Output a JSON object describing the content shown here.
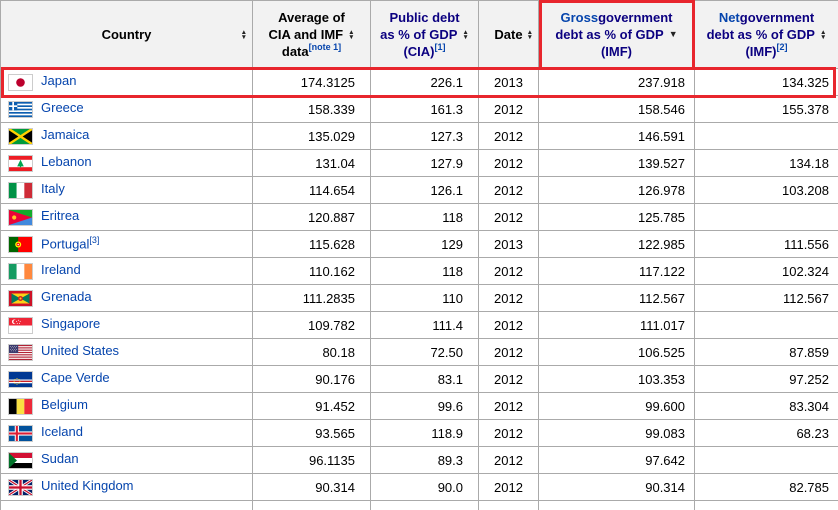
{
  "colors": {
    "link_blue": "#0645ad",
    "visited_link_navy": "#0b0080",
    "annotation_red": "#e8262d",
    "table_border_gray": "#aaaaaa",
    "header_background": "#f2f2f2"
  },
  "icons": {
    "sort_up_glyph": "▲",
    "sort_down_glyph": "▼"
  },
  "table": {
    "headers": [
      {
        "id": "country",
        "name": "column-header-country",
        "lines": [
          [
            {
              "t": "Country",
              "s": "b"
            }
          ]
        ],
        "sort": "both",
        "single": true
      },
      {
        "id": "average",
        "name": "column-header-average-cia-imf",
        "lines": [
          [
            {
              "t": "Average of",
              "s": "b"
            }
          ],
          [
            {
              "t": "CIA and IMF",
              "s": "b"
            }
          ],
          [
            {
              "t": "data",
              "s": "b"
            },
            {
              "t": "[note 1]",
              "s": "sup"
            }
          ]
        ],
        "sort": "both",
        "icon_line": 1,
        "single": false
      },
      {
        "id": "cia",
        "name": "column-header-public-debt-cia",
        "lines": [
          [
            {
              "t": "Public debt",
              "s": "v"
            }
          ],
          [
            {
              "t": "as % of GDP",
              "s": "v"
            }
          ],
          [
            {
              "t": "(CIA)",
              "s": "v"
            },
            {
              "t": "[1]",
              "s": "sup"
            }
          ]
        ],
        "sort": "both",
        "icon_line": 1,
        "single": false
      },
      {
        "id": "date",
        "name": "column-header-date",
        "lines": [
          [
            {
              "t": "Date",
              "s": "b"
            }
          ]
        ],
        "sort": "both",
        "single": true
      },
      {
        "id": "gross",
        "name": "column-header-gross-debt-imf",
        "lines": [
          [
            {
              "t": "Gross",
              "s": "l"
            },
            {
              "t": " government",
              "s": "v"
            }
          ],
          [
            {
              "t": "debt as % of GDP",
              "s": "v"
            }
          ],
          [
            {
              "t": "(IMF)",
              "s": "v"
            }
          ]
        ],
        "sort": "desc",
        "icon_line": 1,
        "single": false,
        "boxed": true
      },
      {
        "id": "net",
        "name": "column-header-net-debt-imf",
        "lines": [
          [
            {
              "t": "Net",
              "s": "l"
            },
            {
              "t": " government",
              "s": "v"
            }
          ],
          [
            {
              "t": "debt as % of GDP",
              "s": "v"
            }
          ],
          [
            {
              "t": "(IMF)",
              "s": "v"
            },
            {
              "t": "[2]",
              "s": "sup"
            }
          ]
        ],
        "sort": "both",
        "icon_line": 1,
        "single": false
      }
    ],
    "rows": [
      {
        "flag": "japan",
        "country": "Japan",
        "country_sup": "",
        "average": "174.3125",
        "cia": "226.1",
        "date": "2013",
        "gross": "237.918",
        "net": "134.325",
        "highlighted": true
      },
      {
        "flag": "greece",
        "country": "Greece",
        "country_sup": "",
        "average": "158.339",
        "cia": "161.3",
        "date": "2012",
        "gross": "158.546",
        "net": "155.378",
        "highlighted": false
      },
      {
        "flag": "jamaica",
        "country": "Jamaica",
        "country_sup": "",
        "average": "135.029",
        "cia": "127.3",
        "date": "2012",
        "gross": "146.591",
        "net": "",
        "highlighted": false
      },
      {
        "flag": "lebanon",
        "country": "Lebanon",
        "country_sup": "",
        "average": "131.04",
        "cia": "127.9",
        "date": "2012",
        "gross": "139.527",
        "net": "134.18",
        "highlighted": false
      },
      {
        "flag": "italy",
        "country": "Italy",
        "country_sup": "",
        "average": "114.654",
        "cia": "126.1",
        "date": "2012",
        "gross": "126.978",
        "net": "103.208",
        "highlighted": false
      },
      {
        "flag": "eritrea",
        "country": "Eritrea",
        "country_sup": "",
        "average": "120.887",
        "cia": "118",
        "date": "2012",
        "gross": "125.785",
        "net": "",
        "highlighted": false
      },
      {
        "flag": "portugal",
        "country": "Portugal",
        "country_sup": "[3]",
        "average": "115.628",
        "cia": "129",
        "date": "2013",
        "gross": "122.985",
        "net": "111.556",
        "highlighted": false
      },
      {
        "flag": "ireland",
        "country": "Ireland",
        "country_sup": "",
        "average": "110.162",
        "cia": "118",
        "date": "2012",
        "gross": "117.122",
        "net": "102.324",
        "highlighted": false
      },
      {
        "flag": "grenada",
        "country": "Grenada",
        "country_sup": "",
        "average": "111.2835",
        "cia": "110",
        "date": "2012",
        "gross": "112.567",
        "net": "112.567",
        "highlighted": false
      },
      {
        "flag": "singapore",
        "country": "Singapore",
        "country_sup": "",
        "average": "109.782",
        "cia": "111.4",
        "date": "2012",
        "gross": "111.017",
        "net": "",
        "highlighted": false
      },
      {
        "flag": "united-states",
        "country": "United States",
        "country_sup": "",
        "average": "80.18",
        "cia": "72.50",
        "date": "2012",
        "gross": "106.525",
        "net": "87.859",
        "highlighted": false
      },
      {
        "flag": "cape-verde",
        "country": "Cape Verde",
        "country_sup": "",
        "average": "90.176",
        "cia": "83.1",
        "date": "2012",
        "gross": "103.353",
        "net": "97.252",
        "highlighted": false
      },
      {
        "flag": "belgium",
        "country": "Belgium",
        "country_sup": "",
        "average": "91.452",
        "cia": "99.6",
        "date": "2012",
        "gross": "99.600",
        "net": "83.304",
        "highlighted": false
      },
      {
        "flag": "iceland",
        "country": "Iceland",
        "country_sup": "",
        "average": "93.565",
        "cia": "118.9",
        "date": "2012",
        "gross": "99.083",
        "net": "68.23",
        "highlighted": false
      },
      {
        "flag": "sudan",
        "country": "Sudan",
        "country_sup": "",
        "average": "96.1135",
        "cia": "89.3",
        "date": "2012",
        "gross": "97.642",
        "net": "",
        "highlighted": false
      },
      {
        "flag": "united-kingdom",
        "country": "United Kingdom",
        "country_sup": "",
        "average": "90.314",
        "cia": "90.0",
        "date": "2012",
        "gross": "90.314",
        "net": "82.785",
        "highlighted": false
      }
    ],
    "partial_empty_row": true
  },
  "annotations": {
    "boxed_header_column": "gross",
    "boxed_row_country": "Japan"
  }
}
